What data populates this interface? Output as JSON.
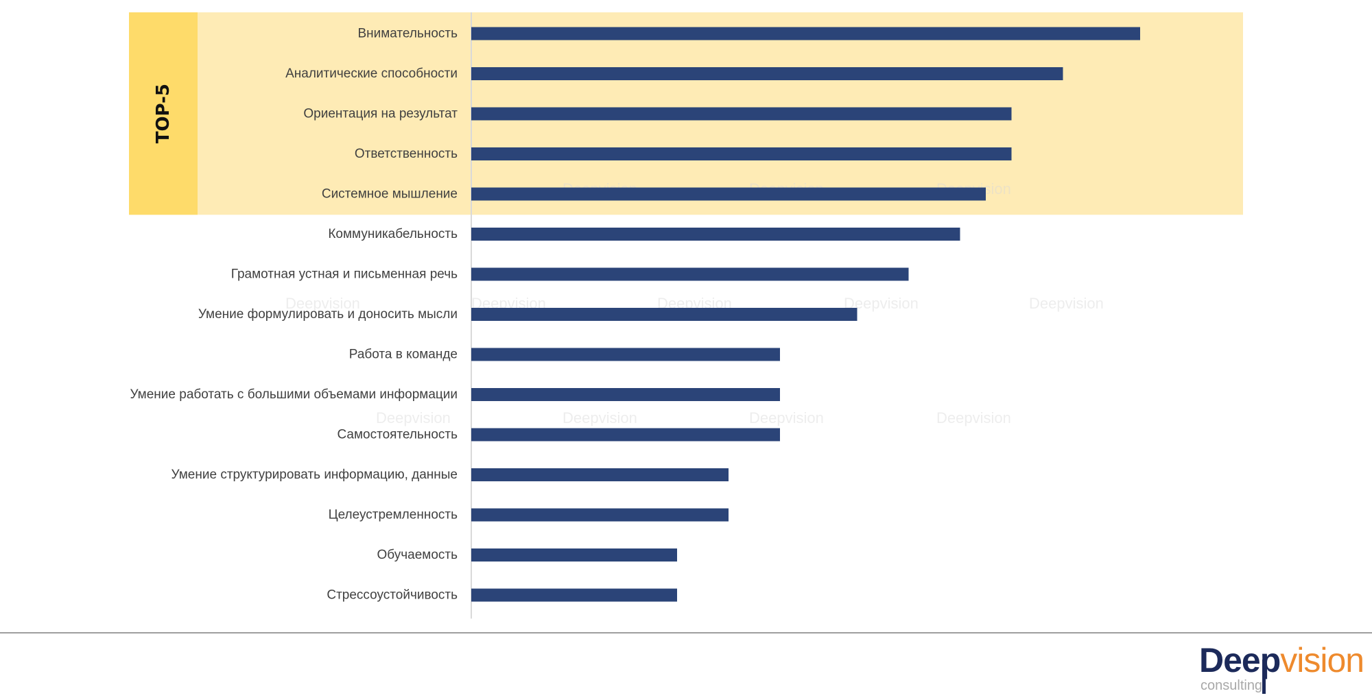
{
  "chart_data": {
    "type": "bar",
    "orientation": "horizontal",
    "highlight_label": "TOP-5",
    "highlight_count": 5,
    "categories": [
      "Внимательность",
      "Аналитические способности",
      "Ориентация на результат",
      "Ответственность",
      "Системное мышление",
      "Коммуникабельность",
      "Грамотная устная и письменная речь",
      "Умение формулировать и доносить мысли",
      "Работа в команде",
      "Умение работать с большими объемами информации",
      "Самостоятельность",
      "Умение структурировать информацию, данные",
      "Целеустремленность",
      "Обучаемость",
      "Стрессоустойчивость"
    ],
    "values": [
      26,
      23,
      21,
      21,
      20,
      19,
      17,
      15,
      12,
      12,
      12,
      10,
      10,
      8,
      8
    ],
    "xlim": [
      0,
      30
    ],
    "bar_color": "#2b4478",
    "highlight_band_color": "#feebb5",
    "highlight_tab_color": "#fedb6a",
    "watermark": "Deepvision"
  },
  "logo": {
    "deep": "Deep",
    "vision": "vision",
    "sub": "consulting"
  }
}
